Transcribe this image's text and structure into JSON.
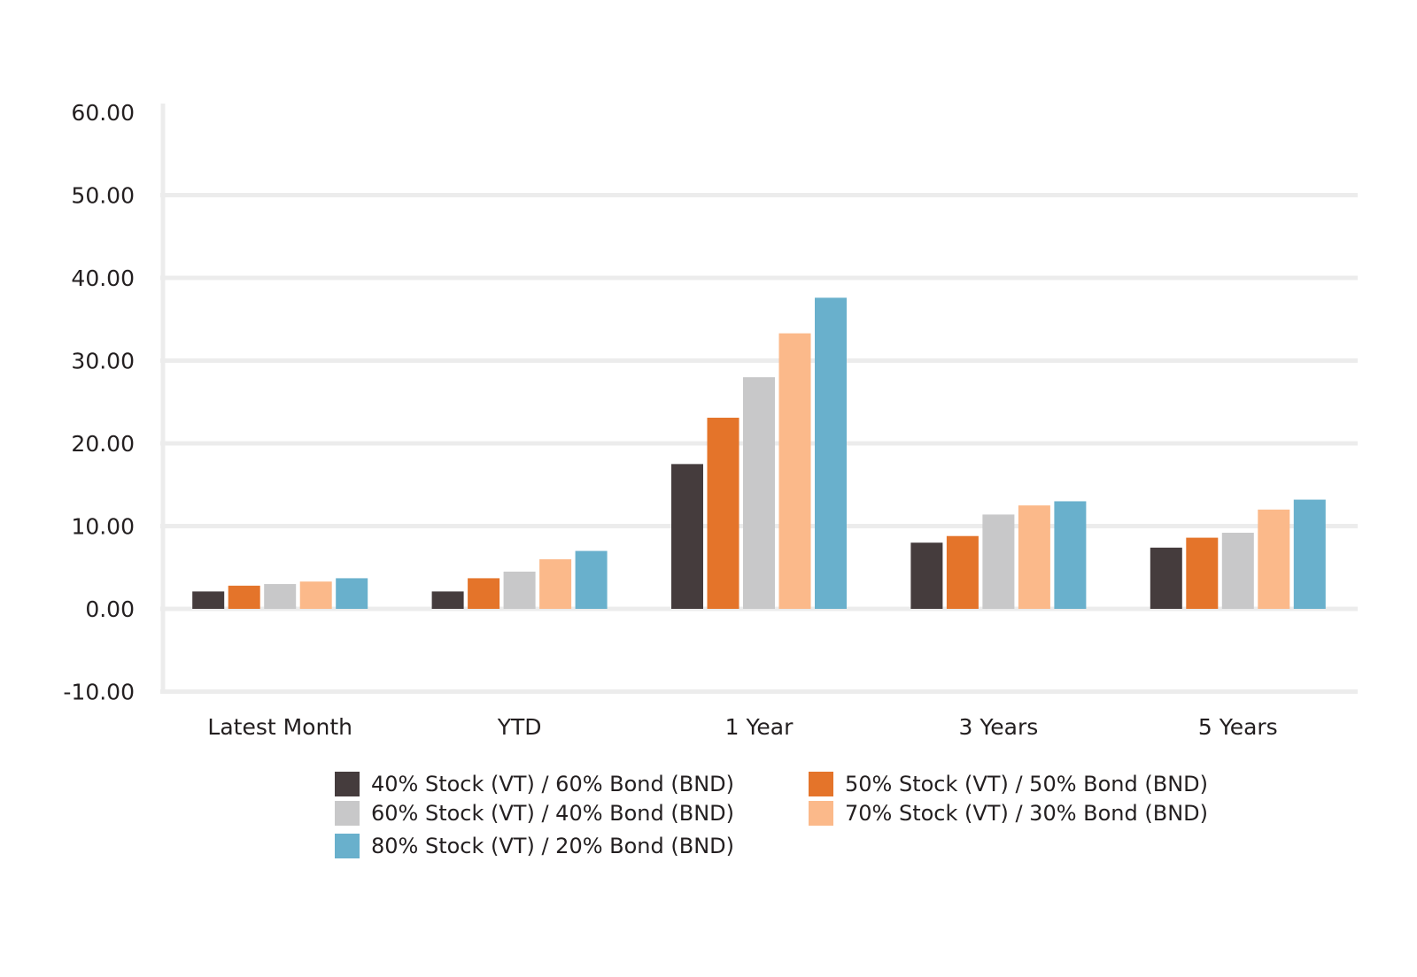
{
  "chart_data": {
    "type": "bar",
    "title": "",
    "xlabel": "",
    "ylabel": "",
    "ylim": [
      -10,
      60
    ],
    "y_ticks": [
      "60.00",
      "50.00",
      "40.00",
      "30.00",
      "20.00",
      "10.00",
      "0.00",
      "-10.00"
    ],
    "categories": [
      "Latest Month",
      "YTD",
      "1 Year",
      "3 Years",
      "5 Years"
    ],
    "series": [
      {
        "name": "40% Stock (VT) / 60% Bond (BND)",
        "color": "#453c3d",
        "values": [
          2.1,
          2.1,
          17.5,
          8.0,
          7.4
        ]
      },
      {
        "name": "50% Stock (VT) / 50% Bond (BND)",
        "color": "#e4742a",
        "values": [
          2.8,
          3.7,
          23.1,
          8.8,
          8.6
        ]
      },
      {
        "name": "60% Stock (VT) / 40% Bond (BND)",
        "color": "#c8c8c9",
        "values": [
          3.0,
          4.5,
          28.0,
          11.4,
          9.2
        ]
      },
      {
        "name": "70% Stock (VT) / 30% Bond (BND)",
        "color": "#fbb98a",
        "values": [
          3.3,
          6.0,
          33.3,
          12.5,
          12.0
        ]
      },
      {
        "name": "80% Stock (VT) / 20% Bond (BND)",
        "color": "#69b0cc",
        "values": [
          3.7,
          7.0,
          37.6,
          13.0,
          13.2
        ]
      }
    ],
    "grid": true,
    "legend_position": "bottom"
  }
}
